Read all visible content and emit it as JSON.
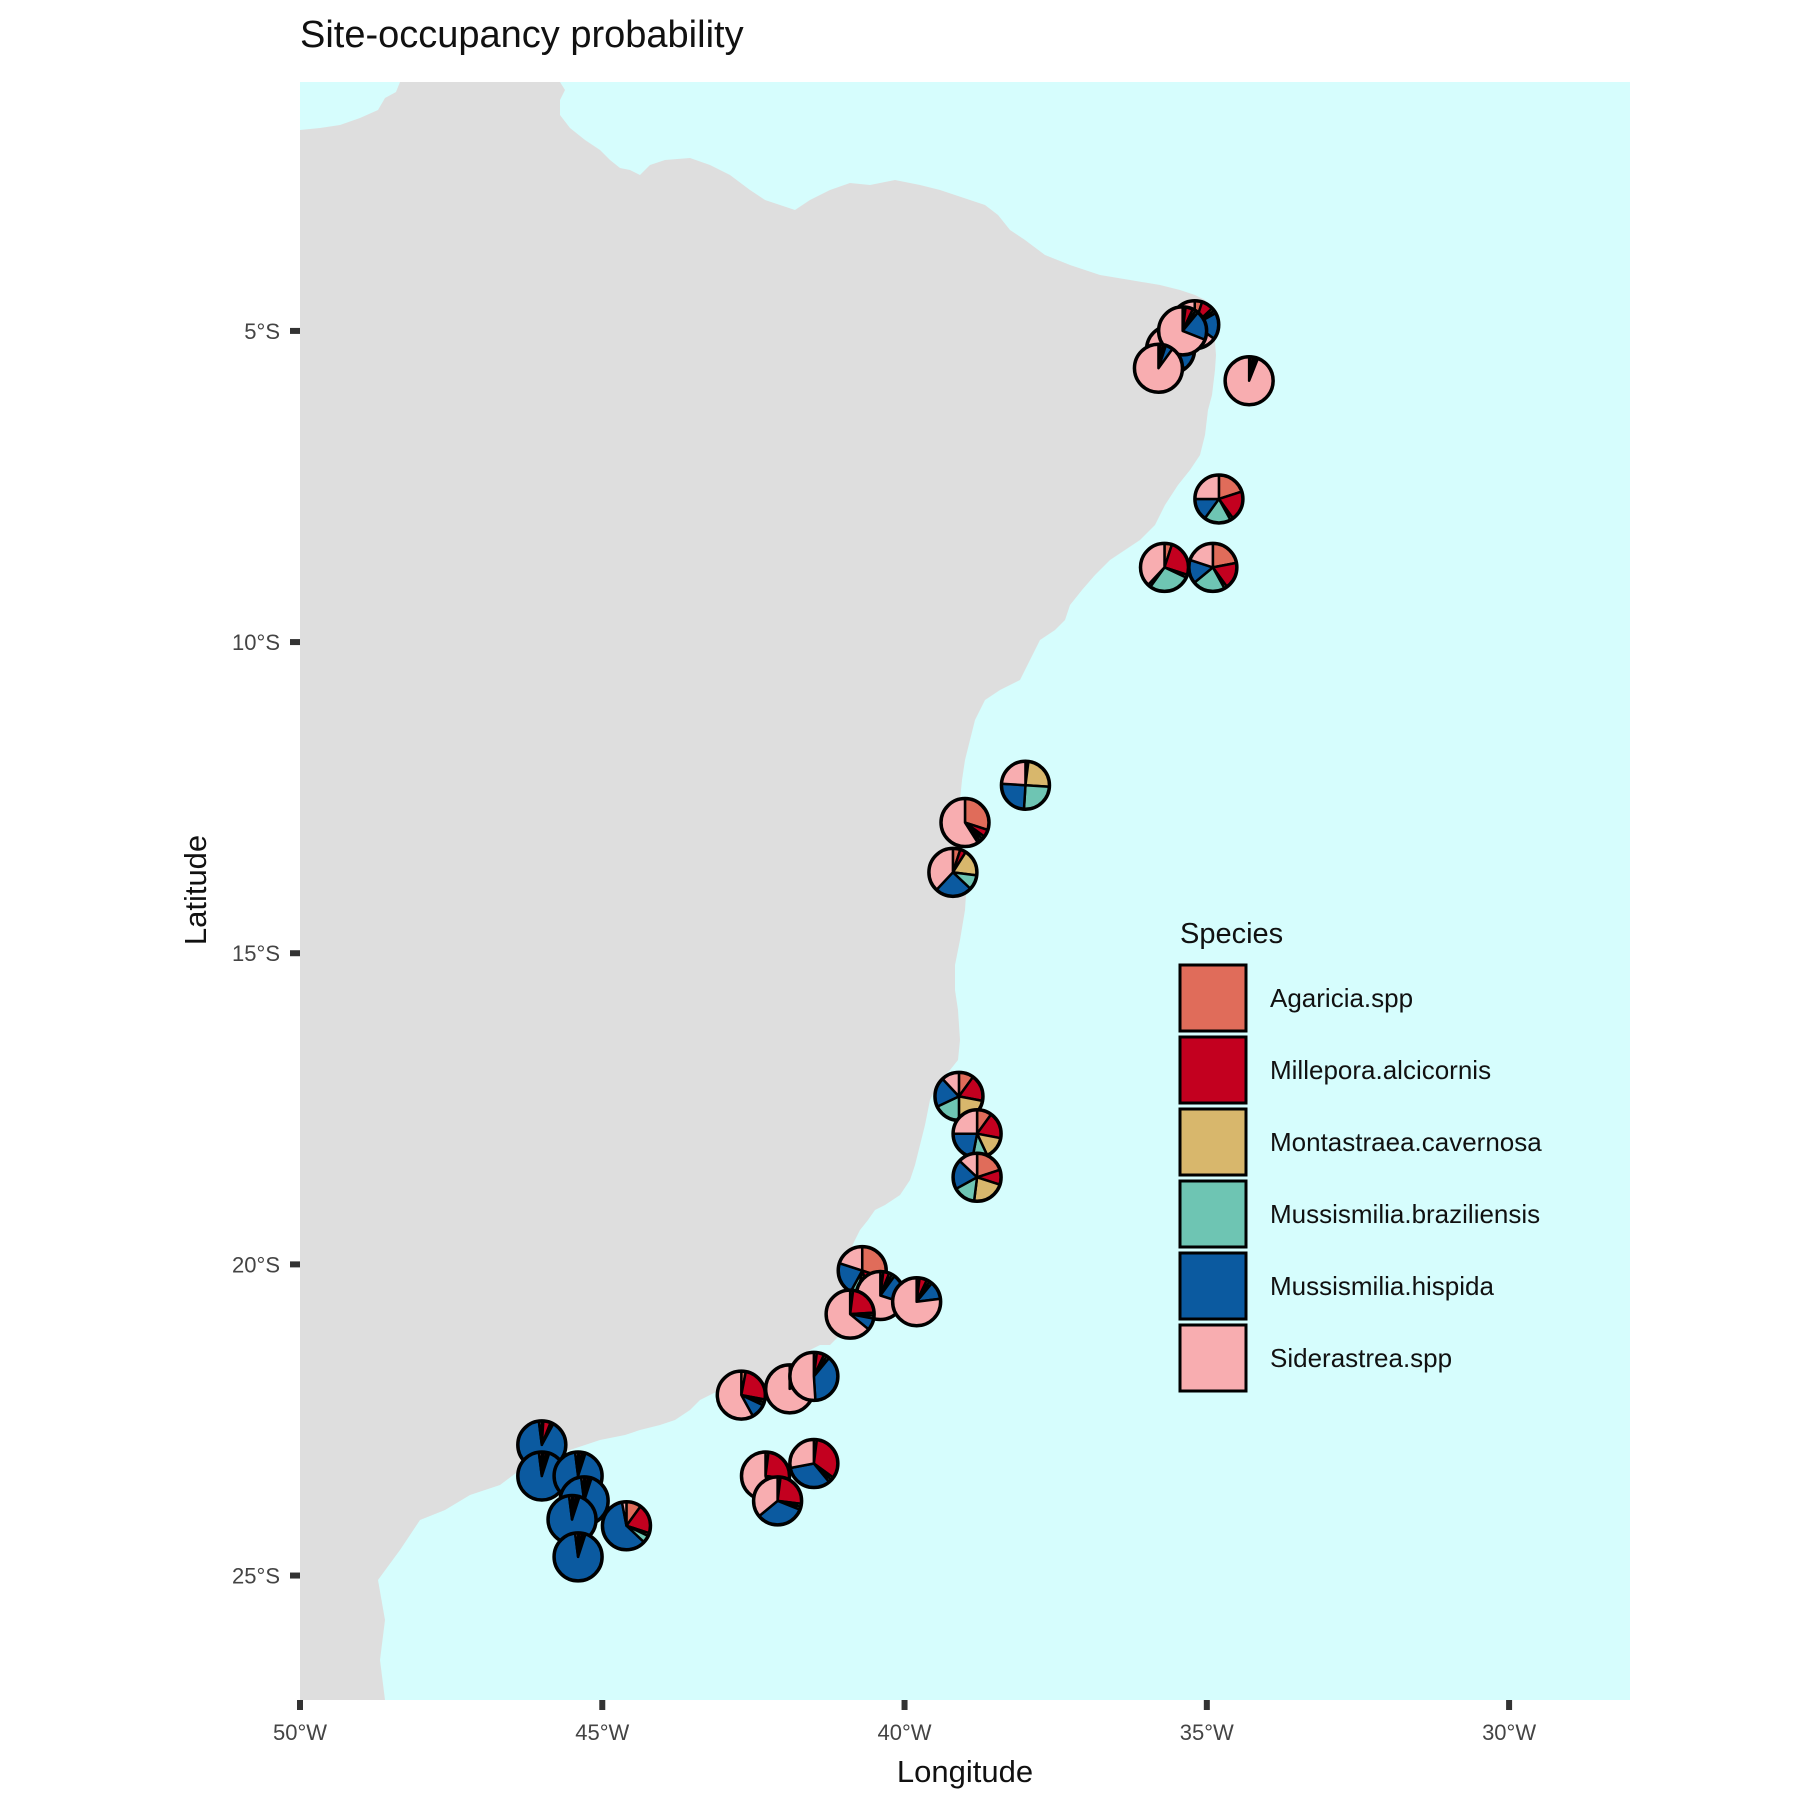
{
  "title": "Site-occupancy probability",
  "x_axis": {
    "title": "Longitude",
    "ticks": [
      {
        "value": -50,
        "label": "50°W"
      },
      {
        "value": -45,
        "label": "45°W"
      },
      {
        "value": -40,
        "label": "40°W"
      },
      {
        "value": -35,
        "label": "35°W"
      },
      {
        "value": -30,
        "label": "30°W"
      }
    ]
  },
  "y_axis": {
    "title": "Latitude",
    "ticks": [
      {
        "value": -5,
        "label": "5°S"
      },
      {
        "value": -10,
        "label": "10°S"
      },
      {
        "value": -15,
        "label": "15°S"
      },
      {
        "value": -20,
        "label": "20°S"
      },
      {
        "value": -25,
        "label": "25°S"
      }
    ]
  },
  "map_extent": {
    "lon": [
      -50,
      -28
    ],
    "lat": [
      -27,
      -1
    ]
  },
  "colors": {
    "land": "#dedede",
    "sea": "#d6fdfd",
    "outline": "#000000"
  },
  "legend": {
    "title": "Species",
    "position": "right-inside",
    "items": [
      {
        "label": "Agaricia.spp",
        "color": "#e06c5a"
      },
      {
        "label": "Millepora.alcicornis",
        "color": "#c3001f"
      },
      {
        "label": "Montastraea.cavernosa",
        "color": "#d8b76c"
      },
      {
        "label": "Mussismilia.braziliensis",
        "color": "#6ec5b3"
      },
      {
        "label": "Mussismilia.hispida",
        "color": "#0b5aa0"
      },
      {
        "label": "Siderastrea.spp",
        "color": "#f8adb0"
      }
    ]
  },
  "chart_data": {
    "type": "pie-map",
    "species": [
      "Agaricia.spp",
      "Millepora.alcicornis",
      "Montastraea.cavernosa",
      "Mussismilia.braziliensis",
      "Mussismilia.hispida",
      "Siderastrea.spp"
    ],
    "sites": [
      {
        "lon": -35.2,
        "lat": -4.9,
        "values": [
          0.05,
          0.08,
          0.02,
          0.02,
          0.18,
          0.65
        ]
      },
      {
        "lon": -35.6,
        "lat": -5.3,
        "values": [
          0.02,
          0.04,
          0.02,
          0.02,
          0.3,
          0.6
        ]
      },
      {
        "lon": -35.4,
        "lat": -5.0,
        "values": [
          0.02,
          0.05,
          0.02,
          0.02,
          0.2,
          0.69
        ]
      },
      {
        "lon": -35.8,
        "lat": -5.6,
        "values": [
          0.01,
          0.02,
          0.01,
          0.01,
          0.05,
          0.9
        ]
      },
      {
        "lon": -34.3,
        "lat": -5.8,
        "values": [
          0.01,
          0.02,
          0.01,
          0.01,
          0.01,
          0.94
        ]
      },
      {
        "lon": -34.8,
        "lat": -7.7,
        "values": [
          0.2,
          0.2,
          0.02,
          0.18,
          0.15,
          0.25
        ]
      },
      {
        "lon": -35.7,
        "lat": -8.8,
        "values": [
          0.05,
          0.25,
          0.02,
          0.28,
          0.02,
          0.38
        ]
      },
      {
        "lon": -34.9,
        "lat": -8.8,
        "values": [
          0.22,
          0.18,
          0.02,
          0.22,
          0.16,
          0.2
        ]
      },
      {
        "lon": -38.0,
        "lat": -12.3,
        "values": [
          0.01,
          0.01,
          0.24,
          0.25,
          0.25,
          0.24
        ]
      },
      {
        "lon": -39.0,
        "lat": -12.9,
        "values": [
          0.3,
          0.05,
          0.02,
          0.02,
          0.02,
          0.59
        ]
      },
      {
        "lon": -39.2,
        "lat": -13.7,
        "values": [
          0.05,
          0.04,
          0.18,
          0.1,
          0.25,
          0.38
        ]
      },
      {
        "lon": -39.1,
        "lat": -17.3,
        "values": [
          0.1,
          0.18,
          0.22,
          0.18,
          0.2,
          0.12
        ]
      },
      {
        "lon": -38.8,
        "lat": -17.9,
        "values": [
          0.1,
          0.18,
          0.15,
          0.1,
          0.22,
          0.25
        ]
      },
      {
        "lon": -38.8,
        "lat": -18.6,
        "values": [
          0.2,
          0.1,
          0.22,
          0.15,
          0.2,
          0.13
        ]
      },
      {
        "lon": -40.7,
        "lat": -20.1,
        "values": [
          0.3,
          0.15,
          0.08,
          0.05,
          0.22,
          0.2
        ]
      },
      {
        "lon": -40.4,
        "lat": -20.5,
        "values": [
          0.02,
          0.04,
          0.02,
          0.02,
          0.2,
          0.7
        ]
      },
      {
        "lon": -39.8,
        "lat": -20.6,
        "values": [
          0.02,
          0.05,
          0.02,
          0.02,
          0.12,
          0.77
        ]
      },
      {
        "lon": -40.9,
        "lat": -20.8,
        "values": [
          0.02,
          0.22,
          0.02,
          0.02,
          0.08,
          0.64
        ]
      },
      {
        "lon": -42.7,
        "lat": -22.1,
        "values": [
          0.03,
          0.25,
          0.02,
          0.02,
          0.1,
          0.58
        ]
      },
      {
        "lon": -41.9,
        "lat": -22.0,
        "values": [
          0.02,
          0.05,
          0.02,
          0.02,
          0.09,
          0.8
        ]
      },
      {
        "lon": -41.5,
        "lat": -21.8,
        "values": [
          0.02,
          0.05,
          0.02,
          0.02,
          0.38,
          0.51
        ]
      },
      {
        "lon": -41.5,
        "lat": -23.2,
        "values": [
          0.02,
          0.33,
          0.02,
          0.02,
          0.33,
          0.28
        ]
      },
      {
        "lon": -42.3,
        "lat": -23.4,
        "values": [
          0.02,
          0.25,
          0.02,
          0.02,
          0.15,
          0.54
        ]
      },
      {
        "lon": -42.1,
        "lat": -23.8,
        "values": [
          0.02,
          0.25,
          0.02,
          0.02,
          0.33,
          0.36
        ]
      },
      {
        "lon": -46.0,
        "lat": -22.9,
        "values": [
          0.01,
          0.05,
          0.01,
          0.01,
          0.9,
          0.02
        ]
      },
      {
        "lon": -46.0,
        "lat": -23.4,
        "values": [
          0.01,
          0.02,
          0.01,
          0.01,
          0.93,
          0.02
        ]
      },
      {
        "lon": -45.4,
        "lat": -23.4,
        "values": [
          0.01,
          0.02,
          0.01,
          0.01,
          0.93,
          0.02
        ]
      },
      {
        "lon": -45.3,
        "lat": -23.8,
        "values": [
          0.01,
          0.02,
          0.01,
          0.01,
          0.93,
          0.02
        ]
      },
      {
        "lon": -45.5,
        "lat": -24.1,
        "values": [
          0.01,
          0.02,
          0.01,
          0.01,
          0.93,
          0.02
        ]
      },
      {
        "lon": -44.6,
        "lat": -24.2,
        "values": [
          0.1,
          0.2,
          0.02,
          0.05,
          0.6,
          0.03
        ]
      },
      {
        "lon": -45.4,
        "lat": -24.7,
        "values": [
          0.01,
          0.02,
          0.01,
          0.01,
          0.93,
          0.02
        ]
      }
    ]
  }
}
